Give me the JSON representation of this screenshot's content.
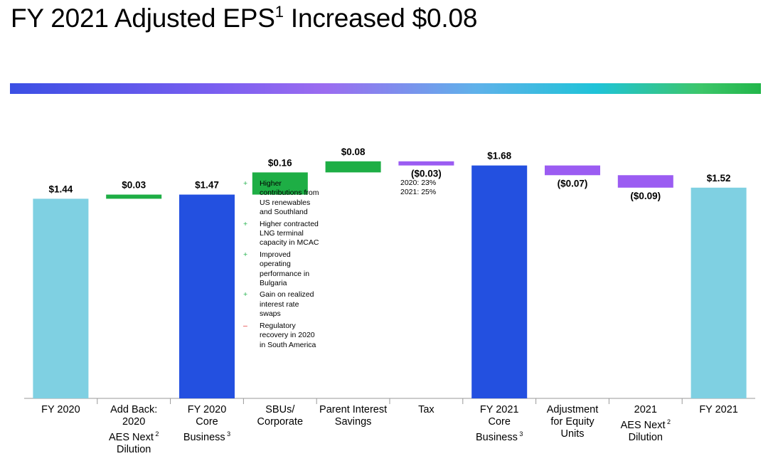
{
  "title": {
    "main": "FY 2021 Adjusted EPS",
    "sup": "1",
    "rest": " Increased $0.08"
  },
  "colors": {
    "total_light": "#7fd0e2",
    "total_dark": "#2350e0",
    "increase": "#1eae45",
    "decrease": "#9b5cf2",
    "axis": "#999999"
  },
  "chart_data": {
    "type": "bar",
    "subtype": "waterfall",
    "title": "FY 2021 Adjusted EPS Increased $0.08",
    "ylim": [
      0,
      1.95
    ],
    "grid": false,
    "legend": "none",
    "bars": [
      {
        "category": "FY 2020",
        "kind": "total",
        "style": "light",
        "start": 0,
        "end": 1.44,
        "label": "$1.44"
      },
      {
        "category": "Add Back: 2020 AES Next Dilution",
        "kind": "increase",
        "start": 1.44,
        "end": 1.47,
        "label": "$0.03"
      },
      {
        "category": "FY 2020 Core Business",
        "kind": "total",
        "style": "dark",
        "start": 0,
        "end": 1.47,
        "label": "$1.47"
      },
      {
        "category": "SBUs/ Corporate",
        "kind": "increase",
        "start": 1.47,
        "end": 1.63,
        "label": "$0.16"
      },
      {
        "category": "Parent Interest Savings",
        "kind": "increase",
        "start": 1.63,
        "end": 1.71,
        "label": "$0.08"
      },
      {
        "category": "Tax",
        "kind": "decrease",
        "start": 1.71,
        "end": 1.68,
        "label": "($0.03)"
      },
      {
        "category": "FY 2021 Core Business",
        "kind": "total",
        "style": "dark",
        "start": 0,
        "end": 1.68,
        "label": "$1.68"
      },
      {
        "category": "Adjustment for Equity Units",
        "kind": "decrease",
        "start": 1.68,
        "end": 1.61,
        "label": "($0.07)"
      },
      {
        "category": "2021 AES Next Dilution",
        "kind": "decrease",
        "start": 1.61,
        "end": 1.52,
        "label": "($0.09)"
      },
      {
        "category": "FY 2021",
        "kind": "total",
        "style": "light",
        "start": 0,
        "end": 1.52,
        "label": "$1.52"
      }
    ]
  },
  "categories": [
    {
      "lines": [
        "FY 2020"
      ]
    },
    {
      "lines": [
        "Add Back:",
        "2020",
        "AES Next"
      ],
      "lines_after_sup": [
        "Dilution"
      ],
      "sup": "2"
    },
    {
      "lines": [
        "FY 2020",
        "Core",
        "Business"
      ],
      "sup": "3"
    },
    {
      "lines": [
        "SBUs/",
        "Corporate"
      ]
    },
    {
      "lines": [
        "Parent Interest",
        "Savings"
      ]
    },
    {
      "lines": [
        "Tax"
      ]
    },
    {
      "lines": [
        "FY 2021",
        "Core",
        "Business"
      ],
      "sup": "3"
    },
    {
      "lines": [
        "Adjustment",
        "for Equity",
        "Units"
      ]
    },
    {
      "lines": [
        "2021",
        "AES Next"
      ],
      "lines_after_sup": [
        "Dilution"
      ],
      "sup": "2"
    },
    {
      "lines": [
        "FY 2021"
      ]
    }
  ],
  "sbus_notes": [
    {
      "marker": "+",
      "text": "Higher contributions from US renewables and Southland"
    },
    {
      "marker": "+",
      "text": "Higher contracted LNG terminal capacity in MCAC"
    },
    {
      "marker": "+",
      "text": "Improved operating performance in Bulgaria"
    },
    {
      "marker": "+",
      "text": "Gain on realized interest rate swaps"
    },
    {
      "marker": "–",
      "text": "Regulatory recovery in 2020 in South America"
    }
  ],
  "tax_notes": [
    "2020: 23%",
    "2021: 25%"
  ]
}
